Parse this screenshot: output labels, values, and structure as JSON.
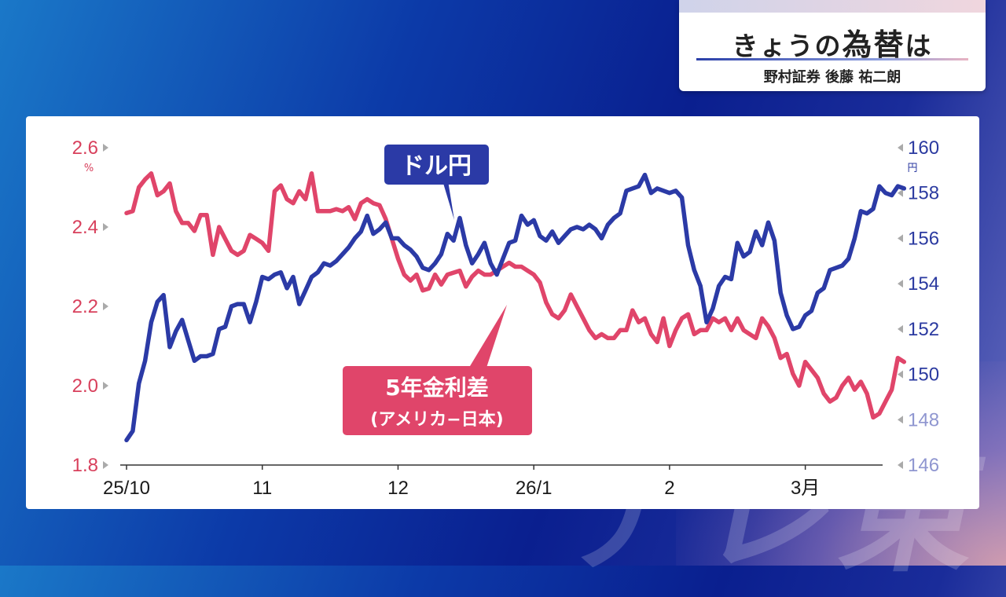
{
  "header": {
    "title_prefix": "きょうの",
    "title_emph": "為替",
    "title_suffix": "は",
    "subtitle": "野村証券 後藤 祐二朗"
  },
  "watermark_text": "テレ東",
  "colors": {
    "usdjpy": "#2b3aa6",
    "rate_diff": "#e0456a",
    "left_axis": "#d8405c",
    "right_axis": "#2b3aa0"
  },
  "chart_data": {
    "type": "line",
    "xlabel": "",
    "x_ticks": [
      "25/10",
      "11",
      "12",
      "26/1",
      "2",
      "3月"
    ],
    "y_left": {
      "label": "",
      "unit": "%",
      "ylim": [
        1.8,
        2.6
      ],
      "ticks": [
        "2.6",
        "2.4",
        "2.2",
        "2.0",
        "1.8"
      ]
    },
    "y_right": {
      "label": "",
      "unit": "円",
      "ylim": [
        146,
        160
      ],
      "ticks": [
        "160",
        "158",
        "156",
        "154",
        "152",
        "150",
        "148",
        "146"
      ]
    },
    "grid": false,
    "series": [
      {
        "name": "ドル円",
        "axis": "right",
        "x": [
          0,
          1,
          2,
          3,
          4,
          5,
          6,
          7,
          8,
          9,
          10,
          11,
          12,
          13,
          14,
          15,
          16,
          17,
          18,
          19,
          20,
          21,
          22,
          23,
          24,
          25,
          26,
          27,
          28,
          29,
          30,
          31,
          32,
          33,
          34,
          35,
          36,
          37,
          38,
          39,
          40,
          41,
          42,
          43,
          44,
          45,
          46,
          47,
          48,
          49,
          50,
          51,
          52,
          53,
          54,
          55,
          56,
          57,
          58,
          59,
          60,
          61,
          62,
          63,
          64,
          65,
          66,
          67,
          68,
          69,
          70,
          71,
          72,
          73,
          74,
          75,
          76,
          77,
          78,
          79,
          80,
          81,
          82,
          83,
          84,
          85,
          86,
          87,
          88,
          89,
          90,
          91,
          92,
          93,
          94,
          95,
          96,
          97,
          98,
          99,
          100,
          101,
          102,
          103,
          104,
          105,
          106,
          107,
          108,
          109,
          110,
          111,
          112,
          113,
          114,
          115,
          116,
          117,
          118,
          119,
          120,
          121,
          122,
          123,
          124,
          125,
          126
        ],
        "values": [
          147.1,
          147.5,
          149.6,
          150.6,
          152.3,
          153.2,
          153.5,
          151.2,
          151.9,
          152.4,
          151.5,
          150.6,
          150.8,
          150.8,
          150.9,
          152.0,
          152.1,
          153.0,
          153.1,
          153.1,
          152.3,
          153.2,
          154.3,
          154.2,
          154.4,
          154.5,
          153.8,
          154.3,
          153.1,
          153.7,
          154.3,
          154.5,
          154.9,
          154.8,
          155.0,
          155.3,
          155.6,
          156.0,
          156.3,
          157.0,
          156.2,
          156.4,
          156.7,
          156.0,
          156.0,
          155.7,
          155.5,
          155.2,
          154.7,
          154.6,
          154.9,
          155.3,
          156.2,
          155.9,
          156.9,
          155.7,
          154.9,
          155.3,
          155.8,
          154.9,
          154.4,
          155.1,
          155.8,
          155.9,
          157.0,
          156.6,
          156.8,
          156.1,
          155.9,
          156.3,
          155.8,
          156.1,
          156.4,
          156.5,
          156.4,
          156.6,
          156.4,
          156.0,
          156.6,
          156.9,
          157.1,
          158.1,
          158.2,
          158.3,
          158.8,
          158.0,
          158.2,
          158.1,
          158.0,
          158.1,
          157.8,
          155.7,
          154.6,
          153.9,
          152.3,
          152.9,
          153.9,
          154.3,
          154.2,
          155.8,
          155.2,
          155.4,
          156.3,
          155.7,
          156.7,
          155.9,
          153.6,
          152.6,
          152.0,
          152.1,
          152.6,
          152.8,
          153.6,
          153.8,
          154.6,
          154.7,
          154.8,
          155.1,
          156.0,
          157.2,
          157.1,
          157.3,
          158.3,
          158.0,
          157.9,
          158.3,
          158.2
        ]
      },
      {
        "name": "5年金利差",
        "name_sub": "(アメリカ−日本)",
        "axis": "left",
        "x": [
          0,
          1,
          2,
          3,
          4,
          5,
          6,
          7,
          8,
          9,
          10,
          11,
          12,
          13,
          14,
          15,
          16,
          17,
          18,
          19,
          20,
          21,
          22,
          23,
          24,
          25,
          26,
          27,
          28,
          29,
          30,
          31,
          32,
          33,
          34,
          35,
          36,
          37,
          38,
          39,
          40,
          41,
          42,
          43,
          44,
          45,
          46,
          47,
          48,
          49,
          50,
          51,
          52,
          53,
          54,
          55,
          56,
          57,
          58,
          59,
          60,
          61,
          62,
          63,
          64,
          65,
          66,
          67,
          68,
          69,
          70,
          71,
          72,
          73,
          74,
          75,
          76,
          77,
          78,
          79,
          80,
          81,
          82,
          83,
          84,
          85,
          86,
          87,
          88,
          89,
          90,
          91,
          92,
          93,
          94,
          95,
          96,
          97,
          98,
          99,
          100,
          101,
          102,
          103,
          104,
          105,
          106,
          107,
          108,
          109,
          110,
          111,
          112,
          113,
          114,
          115,
          116,
          117,
          118,
          119,
          120,
          121,
          122,
          123,
          124,
          125,
          126
        ],
        "values": [
          2.435,
          2.44,
          2.5,
          2.52,
          2.535,
          2.48,
          2.49,
          2.51,
          2.44,
          2.41,
          2.41,
          2.39,
          2.43,
          2.43,
          2.33,
          2.4,
          2.37,
          2.34,
          2.33,
          2.34,
          2.38,
          2.37,
          2.36,
          2.34,
          2.49,
          2.505,
          2.47,
          2.46,
          2.49,
          2.47,
          2.535,
          2.44,
          2.44,
          2.44,
          2.445,
          2.44,
          2.45,
          2.42,
          2.46,
          2.47,
          2.46,
          2.455,
          2.42,
          2.37,
          2.32,
          2.28,
          2.265,
          2.28,
          2.24,
          2.245,
          2.28,
          2.255,
          2.28,
          2.285,
          2.29,
          2.25,
          2.275,
          2.29,
          2.28,
          2.28,
          2.29,
          2.3,
          2.31,
          2.3,
          2.3,
          2.29,
          2.28,
          2.26,
          2.21,
          2.18,
          2.17,
          2.19,
          2.23,
          2.2,
          2.17,
          2.14,
          2.12,
          2.13,
          2.12,
          2.12,
          2.14,
          2.14,
          2.19,
          2.16,
          2.17,
          2.13,
          2.11,
          2.17,
          2.1,
          2.14,
          2.17,
          2.18,
          2.13,
          2.14,
          2.14,
          2.17,
          2.16,
          2.17,
          2.14,
          2.17,
          2.14,
          2.13,
          2.12,
          2.17,
          2.15,
          2.12,
          2.07,
          2.08,
          2.03,
          2.0,
          2.06,
          2.04,
          2.02,
          1.98,
          1.96,
          1.97,
          2.0,
          2.02,
          1.99,
          2.01,
          1.98,
          1.92,
          1.93,
          1.96,
          1.99,
          2.07,
          2.06
        ]
      }
    ],
    "x_tick_positions": [
      0,
      22,
      44,
      66,
      88,
      110
    ],
    "annotations": [
      {
        "text": "ドル円",
        "series": "ドル円"
      },
      {
        "text": "5年金利差",
        "sub": "(アメリカ−日本)",
        "series": "5年金利差"
      }
    ]
  }
}
